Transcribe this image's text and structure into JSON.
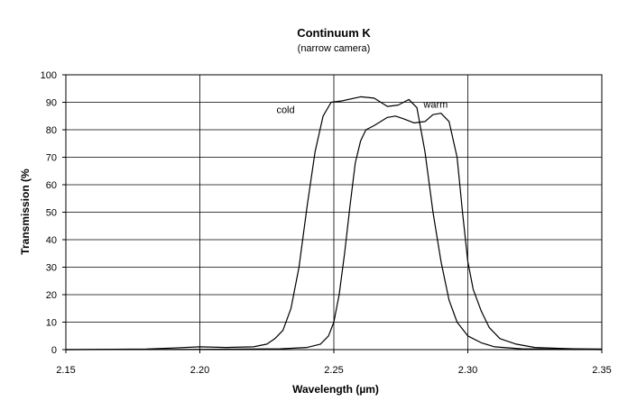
{
  "chart_data": {
    "type": "line",
    "title": "Continuum K",
    "subtitle": "(narrow camera)",
    "xlabel": "Wavelength (µm)",
    "ylabel": "Transmission (%",
    "xlim": [
      2.15,
      2.35
    ],
    "ylim": [
      0,
      100
    ],
    "x_ticks": [
      "2.15",
      "2.20",
      "2.25",
      "2.30",
      "2.35"
    ],
    "y_ticks": [
      "0",
      "10",
      "20",
      "30",
      "40",
      "50",
      "60",
      "70",
      "80",
      "90",
      "100"
    ],
    "grid": true,
    "line_color": "#000000",
    "series": [
      {
        "name": "cold",
        "points": [
          [
            2.15,
            0
          ],
          [
            2.18,
            0.2
          ],
          [
            2.19,
            0.6
          ],
          [
            2.2,
            1.0
          ],
          [
            2.21,
            0.8
          ],
          [
            2.22,
            1.0
          ],
          [
            2.225,
            2
          ],
          [
            2.228,
            4
          ],
          [
            2.231,
            7
          ],
          [
            2.234,
            15
          ],
          [
            2.237,
            30
          ],
          [
            2.24,
            52
          ],
          [
            2.243,
            72
          ],
          [
            2.246,
            85
          ],
          [
            2.249,
            90
          ],
          [
            2.253,
            90.5
          ],
          [
            2.26,
            92
          ],
          [
            2.265,
            91.5
          ],
          [
            2.27,
            88.5
          ],
          [
            2.274,
            89
          ],
          [
            2.278,
            91
          ],
          [
            2.281,
            88
          ],
          [
            2.284,
            72
          ],
          [
            2.287,
            50
          ],
          [
            2.29,
            32
          ],
          [
            2.293,
            18
          ],
          [
            2.296,
            10
          ],
          [
            2.3,
            5
          ],
          [
            2.305,
            2.5
          ],
          [
            2.31,
            1
          ],
          [
            2.32,
            0.3
          ],
          [
            2.35,
            0
          ]
        ]
      },
      {
        "name": "warm",
        "points": [
          [
            2.15,
            0
          ],
          [
            2.2,
            0.1
          ],
          [
            2.23,
            0.3
          ],
          [
            2.24,
            0.8
          ],
          [
            2.245,
            2
          ],
          [
            2.248,
            5
          ],
          [
            2.25,
            10
          ],
          [
            2.252,
            20
          ],
          [
            2.254,
            35
          ],
          [
            2.256,
            52
          ],
          [
            2.258,
            68
          ],
          [
            2.26,
            76
          ],
          [
            2.262,
            80
          ],
          [
            2.265,
            81.5
          ],
          [
            2.27,
            84.5
          ],
          [
            2.273,
            85
          ],
          [
            2.276,
            84
          ],
          [
            2.28,
            82.5
          ],
          [
            2.284,
            83
          ],
          [
            2.287,
            85.5
          ],
          [
            2.29,
            86
          ],
          [
            2.293,
            83
          ],
          [
            2.296,
            70
          ],
          [
            2.298,
            50
          ],
          [
            2.3,
            32
          ],
          [
            2.302,
            22
          ],
          [
            2.305,
            14
          ],
          [
            2.308,
            8
          ],
          [
            2.312,
            4
          ],
          [
            2.318,
            2
          ],
          [
            2.325,
            0.8
          ],
          [
            2.333,
            0.5
          ],
          [
            2.34,
            0.3
          ],
          [
            2.35,
            0.2
          ]
        ]
      }
    ],
    "annotations": [
      {
        "text": "cold",
        "x": 2.232,
        "y": 86
      },
      {
        "text": "warm",
        "x": 2.288,
        "y": 88
      }
    ]
  }
}
